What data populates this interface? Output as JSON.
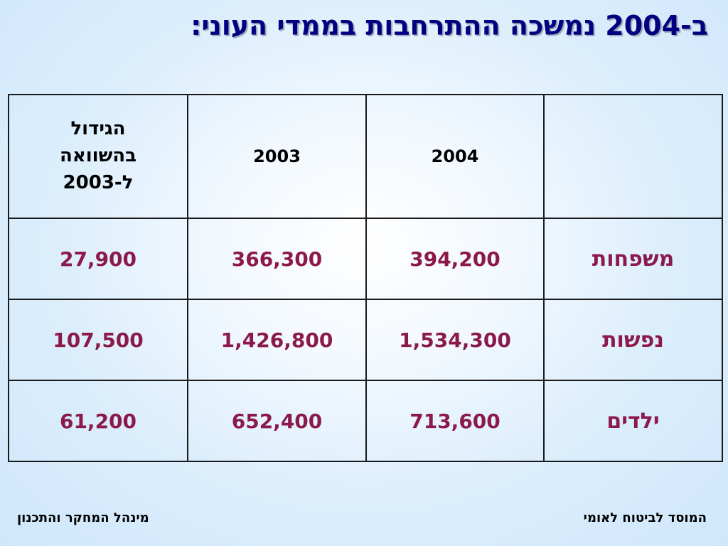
{
  "title": "ב-2004 נמשכה ההתרחבות בממדי העוני:",
  "table": {
    "headers": {
      "label": "",
      "y2004": "2004",
      "y2003": "2003",
      "growth_lines": [
        "הגידול",
        "בהשוואה",
        "ל-2003"
      ]
    },
    "rows": [
      {
        "label": "משפחות",
        "y2004": "394,200",
        "y2003": "366,300",
        "growth": "27,900"
      },
      {
        "label": "נפשות",
        "y2004": "1,534,300",
        "y2003": "1,426,800",
        "growth": "107,500"
      },
      {
        "label": "ילדים",
        "y2004": "713,600",
        "y2003": "652,400",
        "growth": "61,200"
      }
    ]
  },
  "footer": {
    "left": "מינהל המחקר והתכנון",
    "right": "המוסד לביטוח לאומי"
  },
  "colors": {
    "title": "#000080",
    "values": "#8b1a4a",
    "border": "#1a1a1a"
  }
}
